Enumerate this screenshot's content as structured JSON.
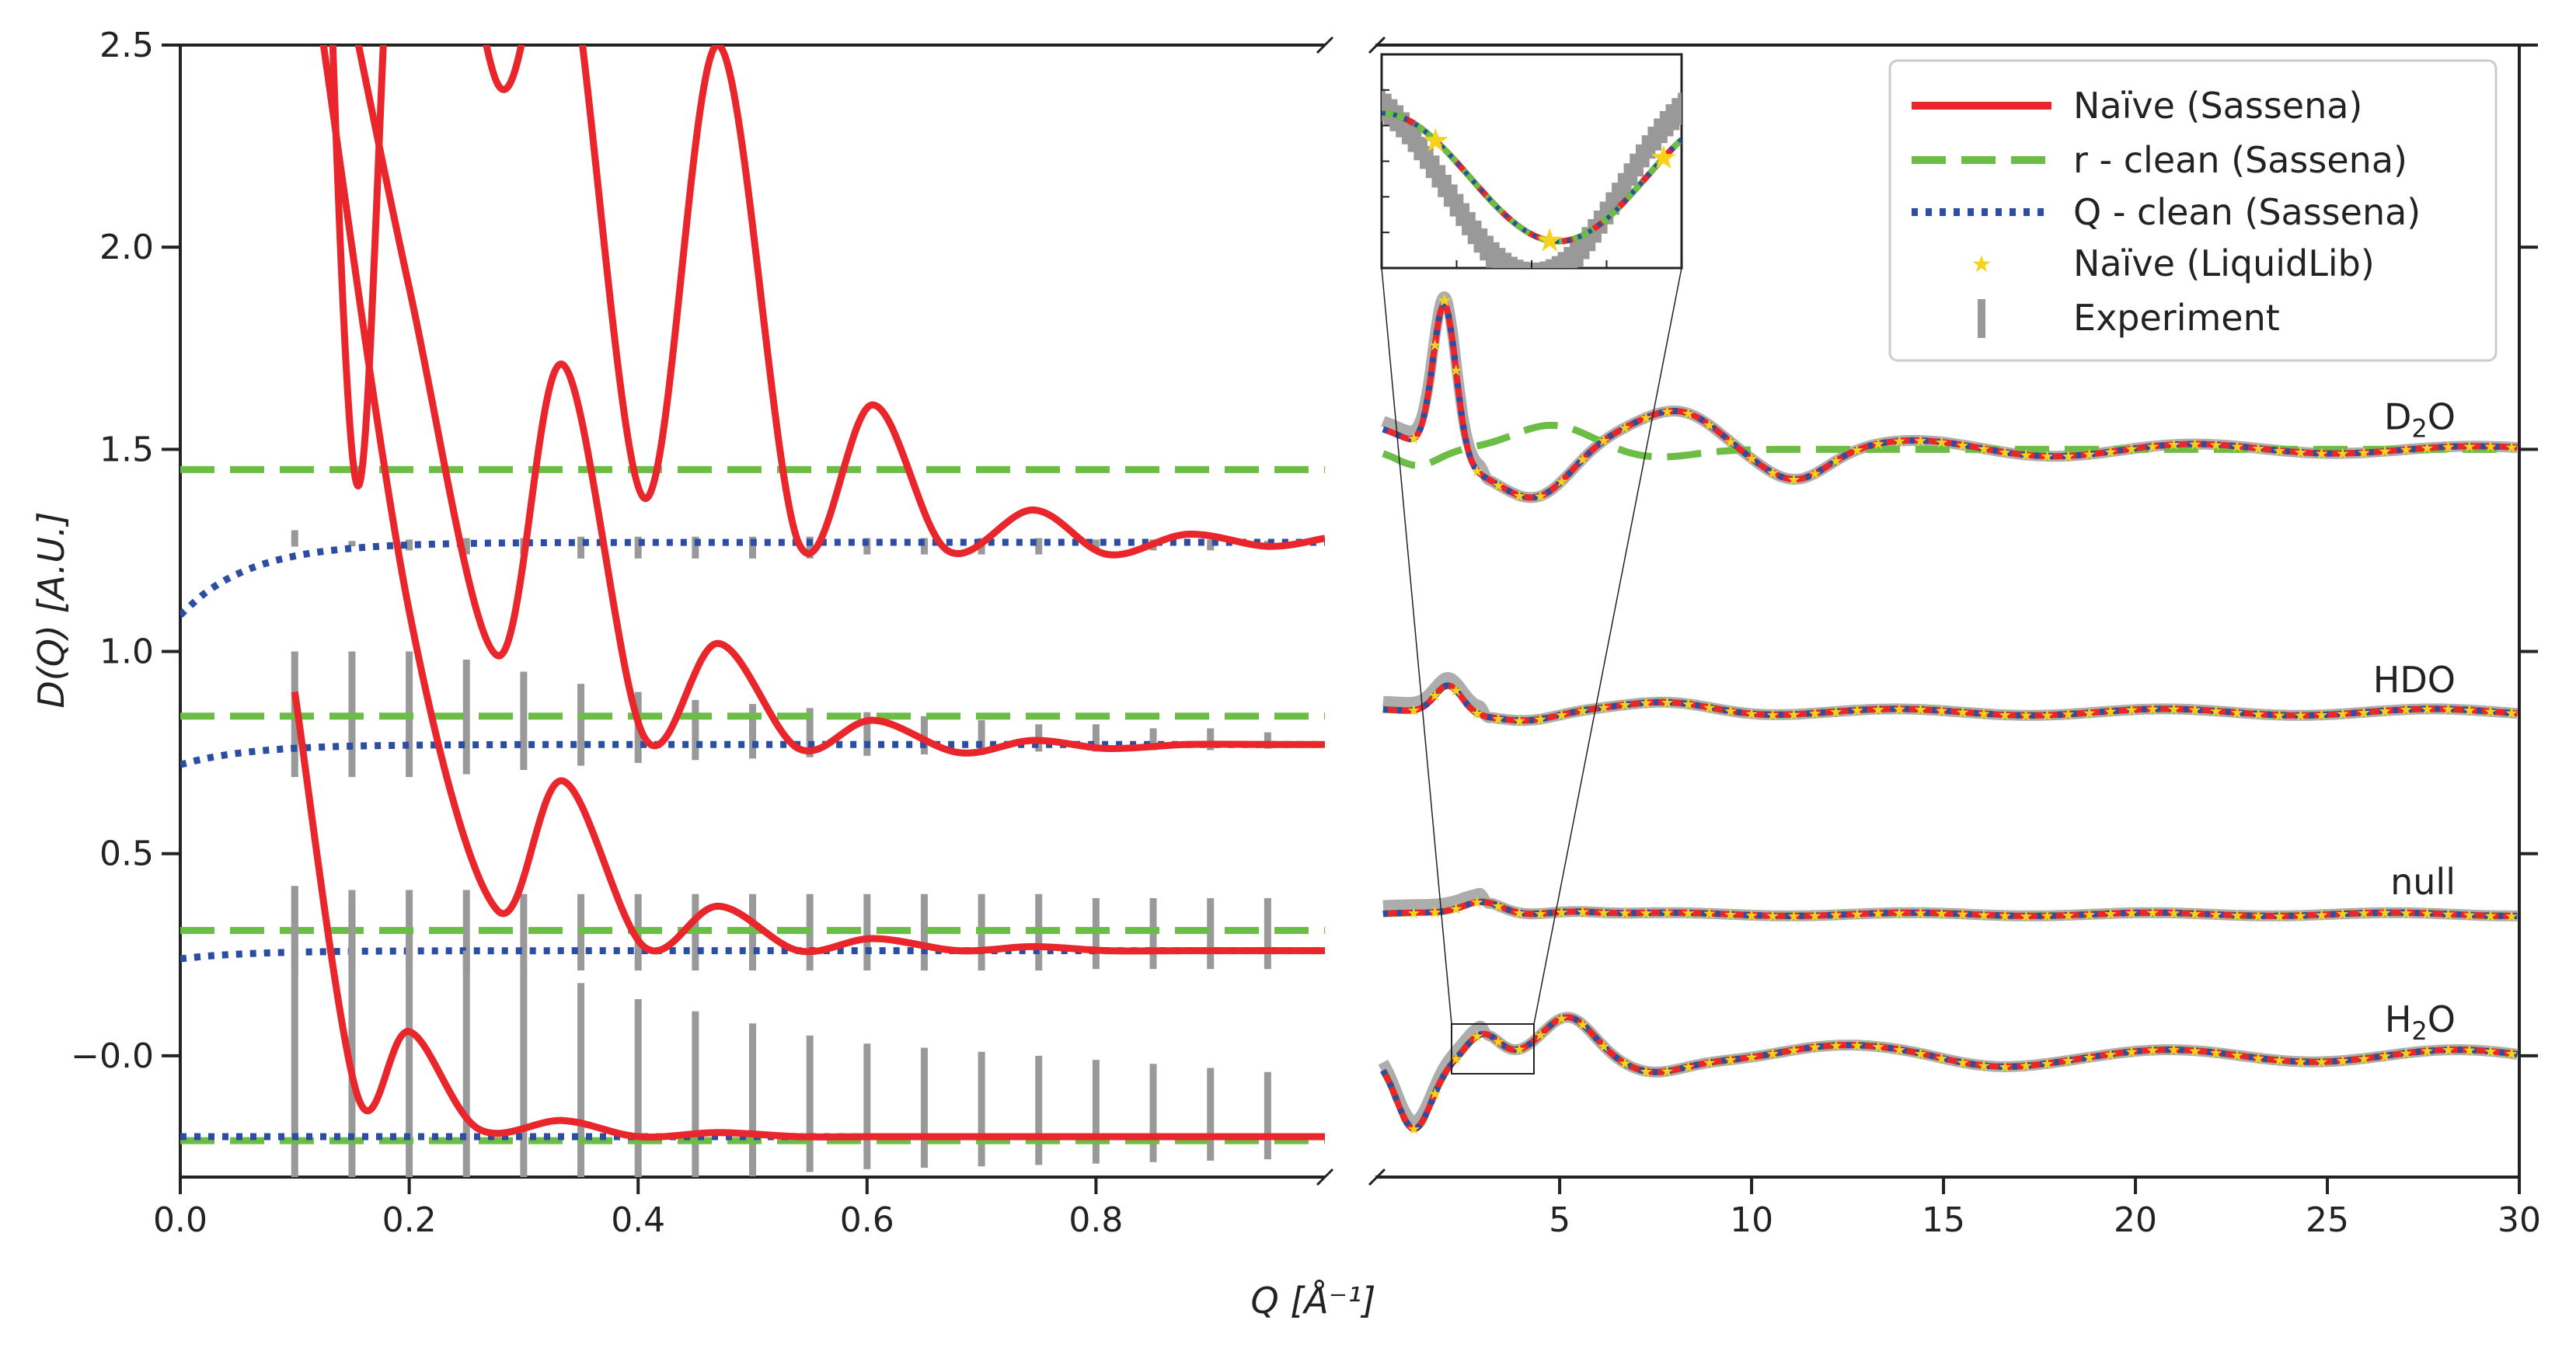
{
  "chart_data": {
    "type": "line",
    "ylabel": "D(Q) [A.U.]",
    "xlabel": "Q [Å⁻¹]",
    "ylim": [
      -0.3,
      2.5
    ],
    "y_ticks": [
      "−0.0",
      "0.5",
      "1.0",
      "1.5",
      "2.0",
      "2.5"
    ],
    "y_tick_values": [
      0.0,
      0.5,
      1.0,
      1.5,
      2.0,
      2.5
    ],
    "left_panel": {
      "xlim": [
        0.0,
        1.0
      ],
      "x_ticks": [
        "0.0",
        "0.2",
        "0.4",
        "0.6",
        "0.8"
      ],
      "x_tick_values": [
        0.0,
        0.2,
        0.4,
        0.6,
        0.8
      ]
    },
    "right_panel": {
      "xlim": [
        0.2,
        30
      ],
      "x_ticks": [
        "5",
        "10",
        "15",
        "20",
        "25",
        "30"
      ],
      "x_tick_values": [
        5,
        10,
        15,
        20,
        25,
        30
      ]
    },
    "legend": [
      {
        "label": "Naïve (Sassena)",
        "style": "solid"
      },
      {
        "label": "r - clean (Sassena)",
        "style": "dashed"
      },
      {
        "label": "Q - clean (Sassena)",
        "style": "dotted"
      },
      {
        "label": "Naïve (LiquidLib)",
        "style": "star"
      },
      {
        "label": "Experiment",
        "style": "bar"
      }
    ],
    "colors": {
      "naive": "#e8262b",
      "rclean": "#6cbd45",
      "qclean": "#2b4da2",
      "liquidlib": "#f7d21c",
      "experiment": "#999999"
    },
    "series": [
      {
        "name": "D₂O",
        "label_main": "D",
        "label_sub": "2",
        "label_tail": "O",
        "baseline": 1.5,
        "left_offset": 1.27,
        "rclean_left": 1.45,
        "qclean_start": 1.09,
        "naive_left": {
          "q": [
            0.12,
            0.155,
            0.2,
            0.278,
            0.334,
            0.405,
            0.47,
            0.54,
            0.605,
            0.67,
            0.745,
            0.81,
            0.88,
            0.95,
            1.0
          ],
          "y": [
            3.6,
            1.41,
            3.4,
            2.4,
            2.8,
            1.38,
            2.5,
            1.27,
            1.61,
            1.25,
            1.35,
            1.24,
            1.29,
            1.26,
            1.28
          ]
        },
        "exp_left": [
          1.3,
          1.26,
          1.25,
          1.24,
          1.24,
          1.23,
          1.23,
          1.23,
          1.23,
          1.23,
          1.24,
          1.24,
          1.24,
          1.24,
          1.25,
          1.25,
          1.25,
          1.26
        ]
      },
      {
        "name": "HDO",
        "label_main": "HDO",
        "label_sub": "",
        "label_tail": "",
        "baseline": 0.85,
        "left_offset": 0.77,
        "rclean_left": 0.84,
        "qclean_start": 0.72,
        "naive_left": {
          "q": [
            0.12,
            0.2,
            0.277,
            0.334,
            0.405,
            0.47,
            0.54,
            0.605,
            0.68,
            0.745,
            0.81,
            0.88,
            0.95,
            1.0
          ],
          "y": [
            3.0,
            1.9,
            0.99,
            1.71,
            0.79,
            1.02,
            0.76,
            0.83,
            0.75,
            0.78,
            0.76,
            0.77,
            0.77,
            0.77
          ]
        },
        "exp_left": [
          1.0,
          1.0,
          1.0,
          0.98,
          0.95,
          0.92,
          0.9,
          0.88,
          0.87,
          0.86,
          0.85,
          0.84,
          0.83,
          0.82,
          0.82,
          0.81,
          0.81,
          0.8
        ]
      },
      {
        "name": "null",
        "label_main": "null",
        "label_sub": "",
        "label_tail": "",
        "baseline": 0.35,
        "left_offset": 0.26,
        "rclean_left": 0.31,
        "qclean_start": 0.24,
        "naive_left": {
          "q": [
            0.12,
            0.2,
            0.277,
            0.334,
            0.405,
            0.47,
            0.54,
            0.605,
            0.68,
            0.745,
            0.81,
            0.88,
            0.95,
            1.0
          ],
          "y": [
            2.6,
            1.1,
            0.36,
            0.68,
            0.27,
            0.37,
            0.26,
            0.29,
            0.26,
            0.27,
            0.26,
            0.26,
            0.26,
            0.26
          ]
        },
        "exp_left": [
          0.42,
          0.41,
          0.41,
          0.41,
          0.4,
          0.4,
          0.4,
          0.4,
          0.4,
          0.4,
          0.4,
          0.4,
          0.4,
          0.4,
          0.39,
          0.39,
          0.39,
          0.39
        ]
      },
      {
        "name": "H₂O",
        "label_main": "H",
        "label_sub": "2",
        "label_tail": "O",
        "baseline": 0.0,
        "left_offset": -0.2,
        "rclean_left": -0.21,
        "qclean_start": -0.2,
        "naive_left": {
          "q": [
            0.1,
            0.155,
            0.2,
            0.26,
            0.334,
            0.4,
            0.47,
            0.54,
            0.605,
            0.68,
            0.745,
            0.81,
            0.88,
            0.95,
            1.0
          ],
          "y": [
            0.9,
            -0.1,
            0.06,
            -0.18,
            -0.16,
            -0.2,
            -0.19,
            -0.2,
            -0.2,
            -0.2,
            -0.2,
            -0.2,
            -0.2,
            -0.2,
            -0.2
          ]
        },
        "exp_left": [
          0.42,
          0.39,
          0.3,
          0.26,
          0.22,
          0.18,
          0.14,
          0.11,
          0.08,
          0.05,
          0.03,
          0.02,
          0.01,
          0.0,
          -0.01,
          -0.02,
          -0.03,
          -0.04
        ]
      }
    ],
    "right_peaks": {
      "q": [
        2.0,
        3.0,
        5.3,
        8.5,
        14.3,
        21.8,
        29.0
      ],
      "amp": [
        0.3,
        0.0,
        -0.08,
        0.06,
        0.03,
        0.015,
        0.01
      ]
    },
    "inset": {
      "xlim": [
        2.5,
        5.0
      ],
      "ylim": [
        -0.08,
        0.12
      ]
    }
  }
}
